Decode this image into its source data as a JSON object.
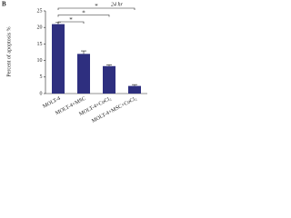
{
  "chart_data": {
    "type": "bar",
    "panel_label": "B",
    "title": "24 hr",
    "ylabel": "Percent of apoptosis %",
    "categories": [
      "MOLT-4",
      "MOLT-4+MSC",
      "MOLT-4+CoCl₂",
      "MOLT-4+MSC+CoCl₂"
    ],
    "values": [
      21,
      12,
      8.3,
      2.3
    ],
    "error": [
      0.6,
      0.9,
      0.4,
      0.4
    ],
    "color": "#2e2f7f",
    "ylim": [
      0,
      25
    ],
    "yticks": [
      0,
      5,
      10,
      15,
      20,
      25
    ],
    "significance": [
      "*",
      "*",
      "*"
    ]
  }
}
